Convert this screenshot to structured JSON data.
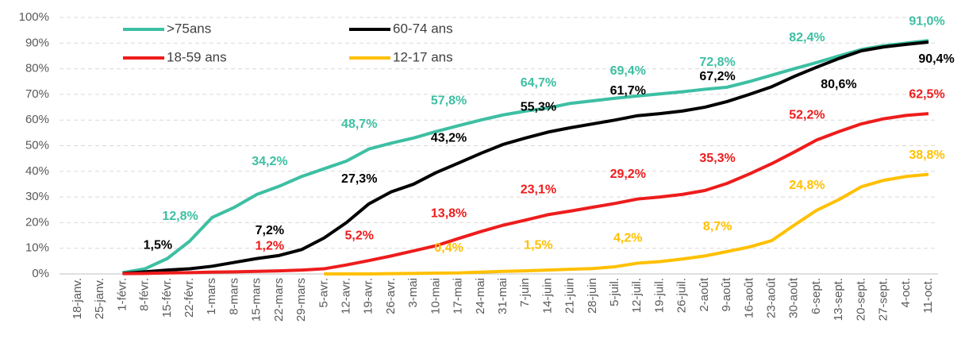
{
  "chart_data": {
    "type": "line",
    "categories": [
      "18-janv.",
      "25-janv.",
      "1-févr.",
      "8-févr.",
      "15-févr.",
      "22-févr.",
      "1-mars",
      "8-mars",
      "15-mars",
      "22-mars",
      "29-mars",
      "5-avr.",
      "12-avr.",
      "19-avr.",
      "26-avr.",
      "3-mai",
      "10-mai",
      "17-mai",
      "24-mai",
      "31-mai",
      "7-juin",
      "14-juin",
      "21-juin",
      "28-juin",
      "5-juil.",
      "12-juil.",
      "19-juil.",
      "26-juil.",
      "2-août",
      "9-août",
      "16-août",
      "23-août",
      "30-août",
      "6-sept.",
      "13-sept.",
      "20-sept.",
      "27-sept.",
      "4-oct.",
      "11-oct."
    ],
    "series": [
      {
        "name": ">75ans",
        "color": "#3dbfa3",
        "values": [
          null,
          null,
          0.5,
          2,
          6,
          12.8,
          22,
          26,
          31,
          34.2,
          38,
          41,
          44,
          48.7,
          51,
          53,
          55.5,
          57.8,
          60,
          62,
          63.5,
          64.7,
          66.5,
          67.5,
          68.5,
          69.4,
          70.2,
          71,
          72,
          72.8,
          75,
          77.5,
          80,
          82.4,
          85,
          87.5,
          89,
          90,
          91.0
        ],
        "value_labels": [
          null,
          null,
          null,
          null,
          null,
          "12,8%",
          null,
          null,
          null,
          "34,2%",
          null,
          null,
          null,
          "48,7%",
          null,
          null,
          null,
          "57,8%",
          null,
          null,
          null,
          "64,7%",
          null,
          null,
          null,
          "69,4%",
          null,
          null,
          null,
          "72,8%",
          null,
          null,
          null,
          "82,4%",
          null,
          null,
          null,
          null,
          "91,0%"
        ]
      },
      {
        "name": "60-74 ans",
        "color": "#000000",
        "values": [
          null,
          null,
          0.2,
          0.8,
          1.5,
          2,
          3,
          4.5,
          6,
          7.2,
          9.5,
          14,
          20,
          27.3,
          32,
          35,
          39.5,
          43.2,
          47,
          50.5,
          53,
          55.3,
          57,
          58.5,
          60,
          61.7,
          62.5,
          63.5,
          65,
          67.2,
          70,
          73,
          77,
          80.6,
          84,
          87,
          88.5,
          89.5,
          90.4
        ],
        "value_labels": [
          null,
          null,
          null,
          null,
          "1,5%",
          null,
          null,
          null,
          null,
          "7,2%",
          null,
          null,
          null,
          "27,3%",
          null,
          null,
          null,
          "43,2%",
          null,
          null,
          null,
          "55,3%",
          null,
          null,
          null,
          "61,7%",
          null,
          null,
          null,
          "67,2%",
          null,
          null,
          null,
          "80,6%",
          null,
          null,
          null,
          null,
          "90,4%"
        ]
      },
      {
        "name": "18-59 ans",
        "color": "#ee1c1c",
        "values": [
          null,
          null,
          0.1,
          0.2,
          0.4,
          0.5,
          0.7,
          0.8,
          1.0,
          1.2,
          1.5,
          2,
          3.5,
          5.2,
          7,
          9,
          11,
          13.8,
          16.5,
          19,
          21,
          23.1,
          24.5,
          26,
          27.5,
          29.2,
          30,
          31,
          32.5,
          35.3,
          39,
          43,
          47.5,
          52.2,
          55.5,
          58.5,
          60.5,
          61.8,
          62.5
        ],
        "value_labels": [
          null,
          null,
          null,
          null,
          null,
          null,
          null,
          null,
          null,
          "1,2%",
          null,
          null,
          null,
          "5,2%",
          null,
          null,
          null,
          "13,8%",
          null,
          null,
          null,
          "23,1%",
          null,
          null,
          null,
          "29,2%",
          null,
          null,
          null,
          "35,3%",
          null,
          null,
          null,
          "52,2%",
          null,
          null,
          null,
          null,
          "62,5%"
        ]
      },
      {
        "name": "12-17 ans",
        "color": "#ffc000",
        "values": [
          null,
          null,
          null,
          null,
          null,
          null,
          null,
          null,
          null,
          null,
          null,
          0,
          0,
          0,
          0.1,
          0.2,
          0.3,
          0.4,
          0.7,
          1.0,
          1.2,
          1.5,
          1.8,
          2.1,
          2.8,
          4.2,
          4.8,
          5.8,
          7,
          8.7,
          10.5,
          13,
          19,
          24.8,
          29,
          34,
          36.5,
          38,
          38.8
        ],
        "value_labels": [
          null,
          null,
          null,
          null,
          null,
          null,
          null,
          null,
          null,
          null,
          null,
          null,
          null,
          null,
          null,
          null,
          null,
          "0,4%",
          null,
          null,
          null,
          "1,5%",
          null,
          null,
          null,
          "4,2%",
          null,
          null,
          null,
          "8,7%",
          null,
          null,
          null,
          "24,8%",
          null,
          null,
          null,
          null,
          "38,8%"
        ]
      }
    ],
    "ylim": [
      0,
      100
    ],
    "yticks": [
      {
        "value": 0,
        "label": "0%"
      },
      {
        "value": 10,
        "label": "10%"
      },
      {
        "value": 20,
        "label": "20%"
      },
      {
        "value": 30,
        "label": "30%"
      },
      {
        "value": 40,
        "label": "40%"
      },
      {
        "value": 50,
        "label": "50%"
      },
      {
        "value": 60,
        "label": "60%"
      },
      {
        "value": 70,
        "label": "70%"
      },
      {
        "value": 80,
        "label": "80%"
      },
      {
        "value": 90,
        "label": "90%"
      },
      {
        "value": 100,
        "label": "100%"
      }
    ],
    "grid": true,
    "legend": "top"
  }
}
